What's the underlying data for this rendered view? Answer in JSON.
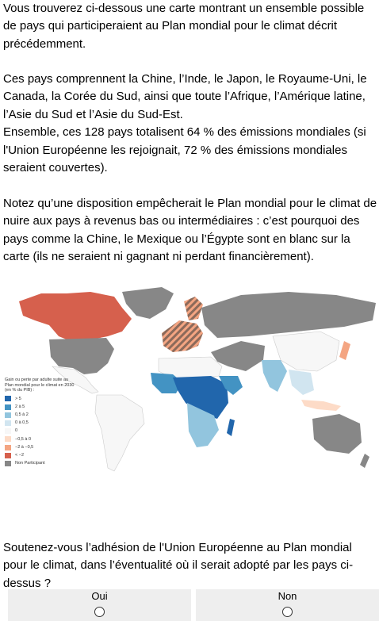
{
  "intro": {
    "paragraph1": "Vous trouverez ci-dessous une carte montrant un ensemble possible de pays qui participeraient au Plan mondial pour le climat décrit précédemment.",
    "paragraph2a": "Ces pays comprennent la Chine, l’Inde, le Japon, le Royaume-Uni, le Canada, la Corée du Sud, ainsi que toute l’Afrique, l’Amérique latine, l’Asie du Sud et l’Asie du Sud-Est.",
    "paragraph2b": "Ensemble, ces 128 pays totalisent 64 % des émissions mondiales (si l'Union Européenne les rejoignait, 72 % des émissions mondiales seraient couvertes).",
    "paragraph3": "Notez qu’une disposition empêcherait le Plan mondial pour le climat de nuire aux pays à revenus bas ou intermédiaires : c’est pourquoi des pays comme la Chine, le Mexique ou l’Égypte sont en blanc sur la carte (ils ne seraient ni gagnant ni perdant financièrement)."
  },
  "map": {
    "legend_title": "Gain ou perte par adulte suite au Plan mondial pour le climat en 2030 (en % du PIB) :",
    "legend_items": [
      {
        "label": "> 5",
        "color": "#2166ac"
      },
      {
        "label": "2 à 5",
        "color": "#4393c3"
      },
      {
        "label": "0,5 à 2",
        "color": "#92c5de"
      },
      {
        "label": "0 à 0,5",
        "color": "#d1e5f0"
      },
      {
        "label": "0",
        "color": "#f7f7f7"
      },
      {
        "label": "−0,5 à 0",
        "color": "#fddbc7"
      },
      {
        "label": "−2 à −0,5",
        "color": "#f4a582"
      },
      {
        "label": "< −2",
        "color": "#d6604d"
      },
      {
        "label": "Non Participant",
        "color": "#878787"
      }
    ]
  },
  "question": "Soutenez-vous l’adhésion de l'Union Européenne au Plan mondial pour le climat, dans l’éventualité où il serait adopté par les pays ci-dessus ?",
  "choices": {
    "yes": "Oui",
    "no": "Non"
  }
}
